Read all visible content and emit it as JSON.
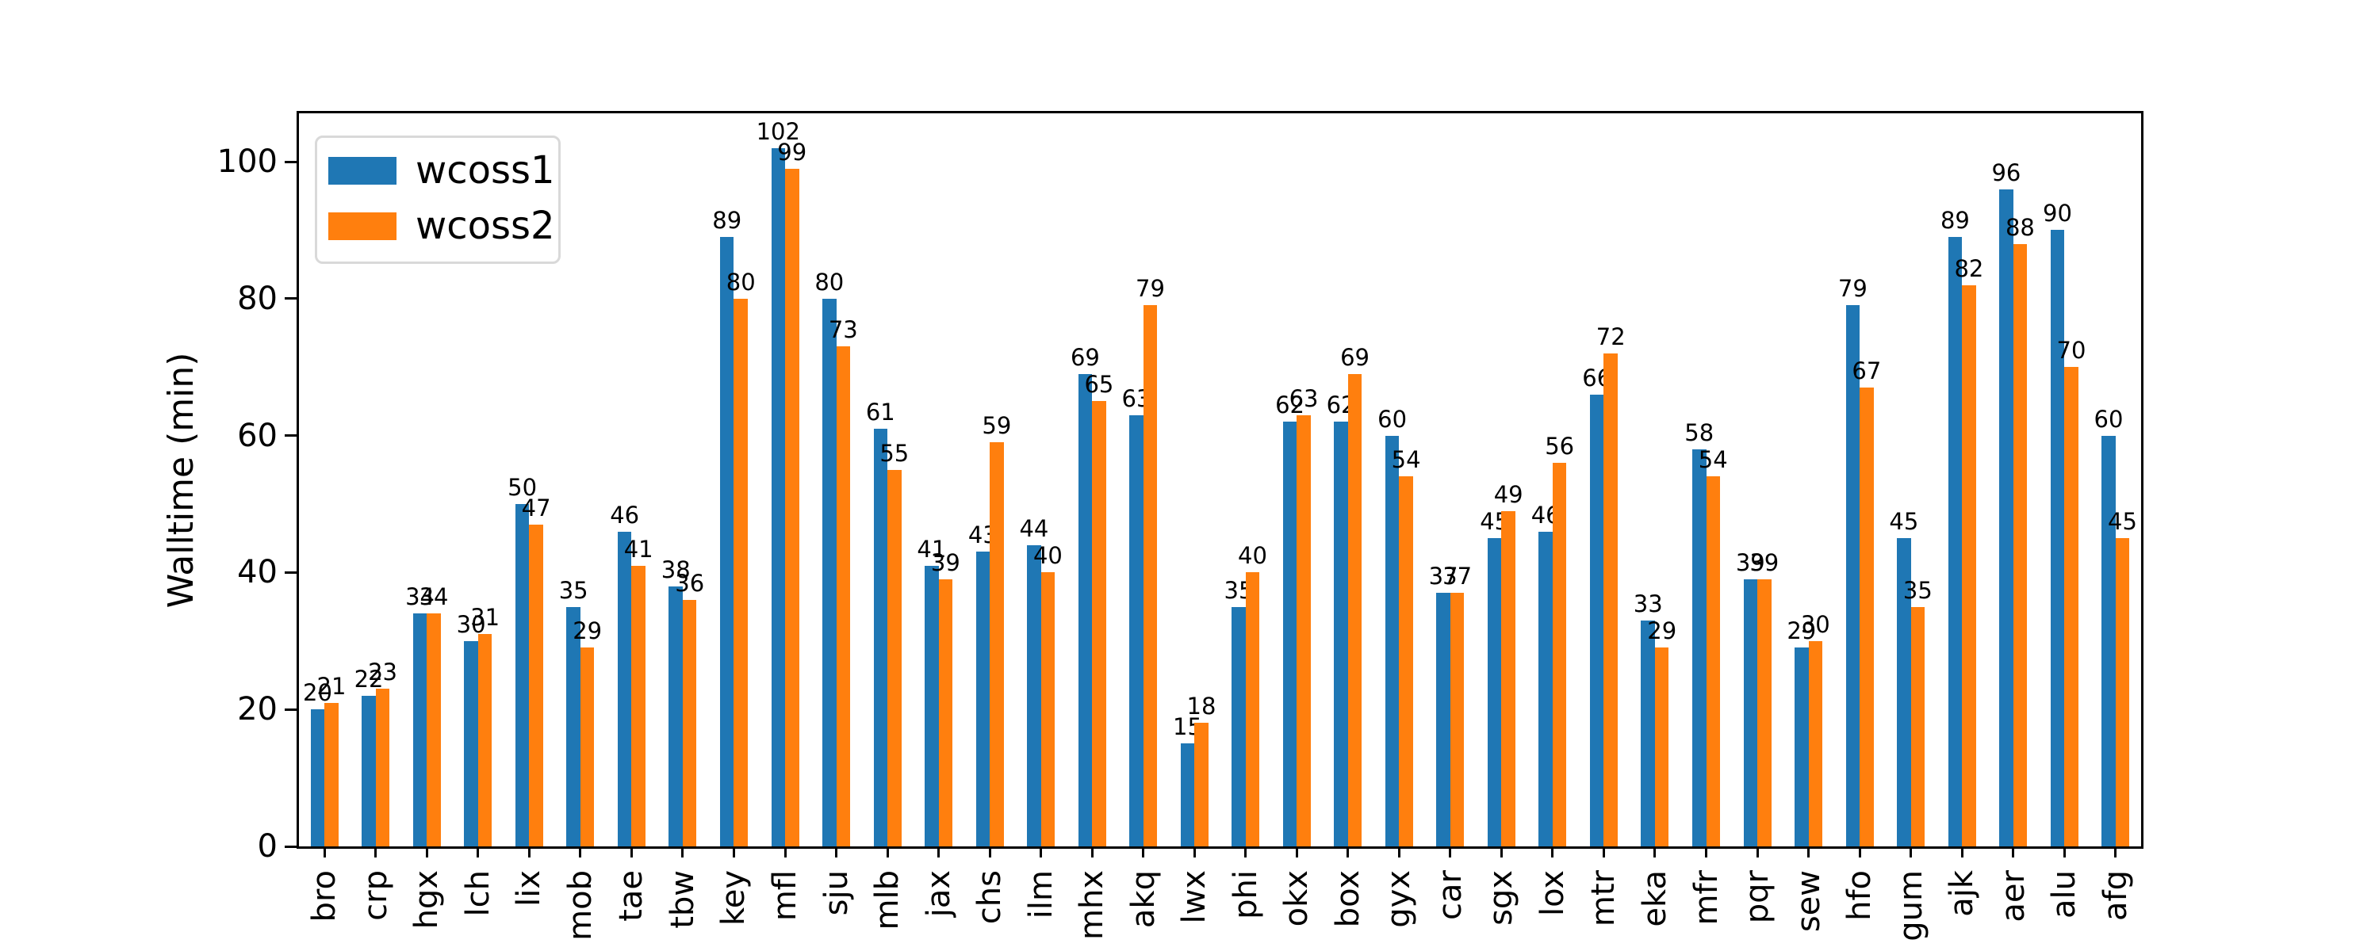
{
  "chart_data": {
    "type": "bar",
    "title": "",
    "xlabel": "",
    "ylabel": "Walltime (min)",
    "ylim": [
      0,
      107
    ],
    "y_ticks": [
      0,
      20,
      40,
      60,
      80,
      100
    ],
    "grid": false,
    "legend_position": "upper left",
    "bar_value_labels": true,
    "categories": [
      "bro",
      "crp",
      "hgx",
      "lch",
      "lix",
      "mob",
      "tae",
      "tbw",
      "key",
      "mfl",
      "sju",
      "mlb",
      "jax",
      "chs",
      "ilm",
      "mhx",
      "akq",
      "lwx",
      "phi",
      "okx",
      "box",
      "gyx",
      "car",
      "sgx",
      "lox",
      "mtr",
      "eka",
      "mfr",
      "pqr",
      "sew",
      "hfo",
      "gum",
      "ajk",
      "aer",
      "alu",
      "afg"
    ],
    "series": [
      {
        "name": "wcoss1",
        "color": "#1f77b4",
        "values": [
          20,
          22,
          34,
          30,
          50,
          35,
          46,
          38,
          89,
          102,
          80,
          61,
          41,
          43,
          44,
          69,
          63,
          15,
          35,
          62,
          62,
          60,
          37,
          45,
          46,
          66,
          33,
          58,
          39,
          29,
          79,
          45,
          89,
          96,
          90,
          60
        ]
      },
      {
        "name": "wcoss2",
        "color": "#ff7f0e",
        "values": [
          21,
          23,
          34,
          31,
          47,
          29,
          41,
          36,
          80,
          99,
          73,
          55,
          39,
          59,
          40,
          65,
          79,
          18,
          40,
          63,
          69,
          54,
          37,
          49,
          56,
          72,
          29,
          54,
          39,
          30,
          67,
          35,
          82,
          88,
          70,
          45
        ]
      }
    ]
  }
}
